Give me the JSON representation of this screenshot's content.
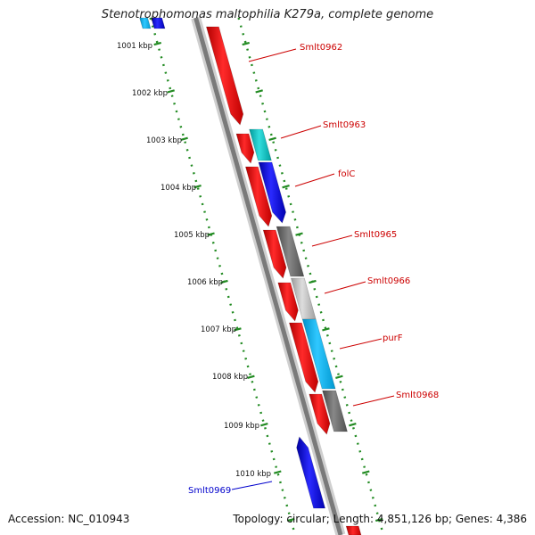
{
  "title": "Stenotrophomonas maltophilia K279a, complete genome",
  "accession": "Accession: NC_010943",
  "summary": "Topology: circular; Length: 4,851,126 bp; Genes: 4,386",
  "kbp_labels": [
    "1001 kbp",
    "1002 kbp",
    "1003 kbp",
    "1004 kbp",
    "1005 kbp",
    "1006 kbp",
    "1007 kbp",
    "1008 kbp",
    "1009 kbp",
    "1010 kbp"
  ],
  "gene_labels": [
    {
      "text": "Smlt0962",
      "color": "#cc0000"
    },
    {
      "text": "Smlt0963",
      "color": "#cc0000"
    },
    {
      "text": "folC",
      "color": "#cc0000"
    },
    {
      "text": "Smlt0965",
      "color": "#cc0000"
    },
    {
      "text": "Smlt0966",
      "color": "#cc0000"
    },
    {
      "text": "purF",
      "color": "#cc0000"
    },
    {
      "text": "Smlt0968",
      "color": "#cc0000"
    },
    {
      "text": "Smlt0969",
      "color": "#0000cc"
    }
  ],
  "colors": {
    "forward_cds": "#ff0000",
    "reverse_cds": "#0000ff",
    "cyan": "#00cccc",
    "sky": "#00b4f0",
    "gray_dark": "#666666",
    "gray_light": "#bbbbbb",
    "backbone": "#808080",
    "tick": "#228b22"
  }
}
